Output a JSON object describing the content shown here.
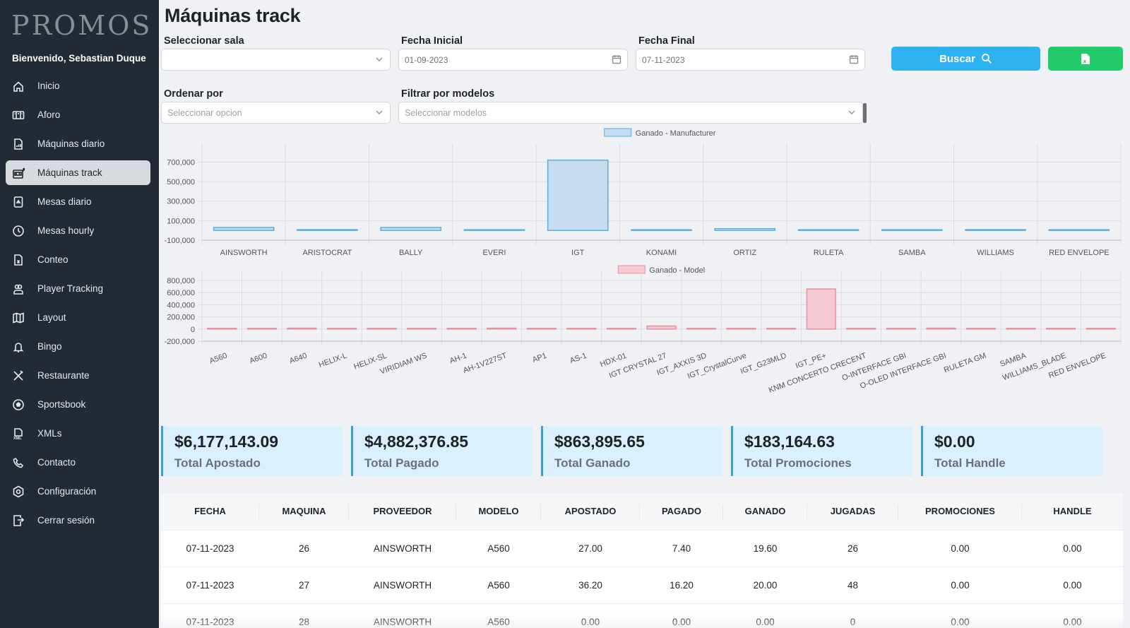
{
  "app": {
    "logo": "PROMOS",
    "welcome": "Bienvenido, Sebastian Duque"
  },
  "sidebar": {
    "items": [
      {
        "label": "Inicio",
        "icon": "home-icon",
        "active": false
      },
      {
        "label": "Aforo",
        "icon": "counter-icon",
        "active": false
      },
      {
        "label": "Máquinas diario",
        "icon": "file-chart-icon",
        "active": false
      },
      {
        "label": "Máquinas track",
        "icon": "slot-machine-icon",
        "active": true
      },
      {
        "label": "Mesas diario",
        "icon": "card-icon",
        "active": false
      },
      {
        "label": "Mesas hourly",
        "icon": "clock-icon",
        "active": false
      },
      {
        "label": "Conteo",
        "icon": "file-excel-icon",
        "active": false
      },
      {
        "label": "Player Tracking",
        "icon": "users-icon",
        "active": false
      },
      {
        "label": "Layout",
        "icon": "map-icon",
        "active": false
      },
      {
        "label": "Bingo",
        "icon": "bell-icon",
        "active": false
      },
      {
        "label": "Restaurante",
        "icon": "utensils-icon",
        "active": false
      },
      {
        "label": "Sportsbook",
        "icon": "soccer-ball-icon",
        "active": false
      },
      {
        "label": "XMLs",
        "icon": "xml-file-icon",
        "active": false
      },
      {
        "label": "Contacto",
        "icon": "phone-icon",
        "active": false
      },
      {
        "label": "Configuración",
        "icon": "settings-icon",
        "active": false
      },
      {
        "label": "Cerrar sesión",
        "icon": "logout-icon",
        "active": false
      }
    ]
  },
  "page": {
    "title": "Máquinas track"
  },
  "filters": {
    "sala": {
      "label": "Seleccionar sala",
      "value": "",
      "placeholder": ""
    },
    "fecha_inicial": {
      "label": "Fecha Inicial",
      "value": "01-09-2023"
    },
    "fecha_final": {
      "label": "Fecha Final",
      "value": "07-11-2023"
    },
    "ordenar": {
      "label": "Ordenar por",
      "placeholder": "Seleccionar opcion"
    },
    "modelos": {
      "label": "Filtrar por modelos",
      "placeholder": "Seleccionar modelos"
    },
    "buscar_label": "Buscar",
    "export_icon": "excel-file-icon"
  },
  "colors": {
    "sidebar_bg": "#222a35",
    "buscar": "#2eb2ef",
    "excel": "#22cc6a",
    "manufacturer_fill": "#c5dcf1",
    "manufacturer_stroke": "#5aaee0",
    "model_fill": "#f5c9d3",
    "model_stroke": "#e88fa3",
    "card_bg": "#dbf0fd",
    "card_border": "#3a9fd5"
  },
  "chart_data": [
    {
      "type": "bar",
      "title": "",
      "legend": "Ganado - Manufacturer",
      "legend_position": "top",
      "categories": [
        "AINSWORTH",
        "ARISTOCRAT",
        "BALLY",
        "EVERI",
        "IGT",
        "KONAMI",
        "ORTIZ",
        "RULETA",
        "SAMBA",
        "WILLIAMS",
        "RED ENVELOPE"
      ],
      "values": [
        30000,
        8000,
        30000,
        2000,
        720000,
        0,
        18000,
        2000,
        500,
        8000,
        1000
      ],
      "yticks": [
        700000,
        500000,
        300000,
        100000,
        -100000
      ],
      "ytick_labels": [
        "700,000",
        "500,000",
        "300,000",
        "100,000",
        "-100,000"
      ],
      "ylim": [
        -100000,
        790000
      ],
      "grid": true
    },
    {
      "type": "bar",
      "title": "",
      "legend": "Ganado - Model",
      "legend_position": "top",
      "categories": [
        "A560",
        "A600",
        "A640",
        "HELIX-L",
        "HELIX-SL",
        "VIRIDIAM WS",
        "AH-1",
        "AH-1V227ST",
        "AP1",
        "AS-1",
        "HDX-01",
        "IGT CRYSTAL 27",
        "IGT_AXXIS 3D",
        "IGT_CrystalCurve",
        "IGT_G23MLD",
        "IGT_PE+",
        "KNM CONCERTO CRECENT",
        "O-INTERFACE GBI",
        "O-OLED INTERFACE GBI",
        "RULETA GM",
        "SAMBA",
        "WILLIAMS_BLADE",
        "RED ENVELOPE"
      ],
      "values": [
        0,
        3000,
        15000,
        0,
        0,
        2000,
        0,
        15000,
        0,
        0,
        0,
        50000,
        3000,
        2000,
        2000,
        660000,
        3000,
        3000,
        15000,
        1000,
        2000,
        8000,
        1000
      ],
      "yticks": [
        800000,
        600000,
        400000,
        200000,
        0,
        -200000
      ],
      "ytick_labels": [
        "800,000",
        "600,000",
        "400,000",
        "200,000",
        "0",
        "-200,000"
      ],
      "ylim": [
        -200000,
        800000
      ],
      "grid": true
    }
  ],
  "stats": [
    {
      "value": "$6,177,143.09",
      "label": "Total Apostado"
    },
    {
      "value": "$4,882,376.85",
      "label": "Total Pagado"
    },
    {
      "value": "$863,895.65",
      "label": "Total Ganado"
    },
    {
      "value": "$183,164.63",
      "label": "Total Promociones"
    },
    {
      "value": "$0.00",
      "label": "Total Handle"
    }
  ],
  "table": {
    "columns": [
      "FECHA",
      "MAQUINA",
      "PROVEEDOR",
      "MODELO",
      "APOSTADO",
      "PAGADO",
      "GANADO",
      "JUGADAS",
      "PROMOCIONES",
      "HANDLE"
    ],
    "rows": [
      [
        "07-11-2023",
        "26",
        "AINSWORTH",
        "A560",
        "27.00",
        "7.40",
        "19.60",
        "26",
        "0.00",
        "0.00"
      ],
      [
        "07-11-2023",
        "27",
        "AINSWORTH",
        "A560",
        "36.20",
        "16.20",
        "20.00",
        "48",
        "0.00",
        "0.00"
      ],
      [
        "07-11-2023",
        "28",
        "AINSWORTH",
        "A560",
        "0.00",
        "0.00",
        "0.00",
        "0",
        "0.00",
        "0.00"
      ]
    ]
  }
}
